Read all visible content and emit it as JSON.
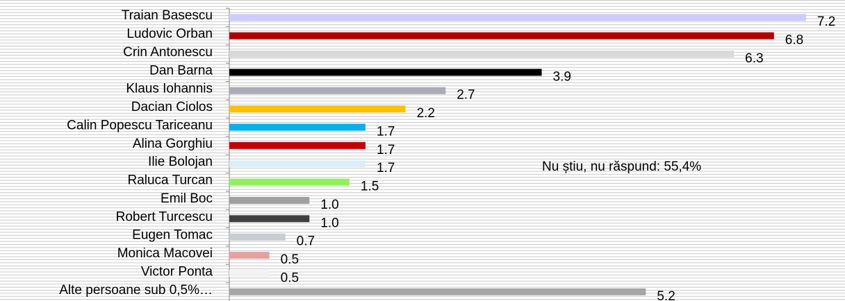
{
  "chart_data": {
    "type": "hbar",
    "categories": [
      "Traian Basescu",
      "Ludovic Orban",
      "Crin Antonescu",
      "Dan Barna",
      "Klaus Iohannis",
      "Dacian Ciolos",
      "Calin Popescu Tariceanu",
      "Alina Gorghiu",
      "Ilie Bolojan",
      "Raluca Turcan",
      "Emil Boc",
      "Robert Turcescu",
      "Eugen Tomac",
      "Monica Macovei",
      "Victor Ponta",
      "Alte persoane sub 0,5%…"
    ],
    "values": [
      7.2,
      6.8,
      6.3,
      3.9,
      2.7,
      2.2,
      1.7,
      1.7,
      1.7,
      1.5,
      1.0,
      1.0,
      0.7,
      0.5,
      0.5,
      5.2
    ],
    "value_labels": [
      "7.2",
      "6.8",
      "6.3",
      "3.9",
      "2.7",
      "2.2",
      "1.7",
      "1.7",
      "1.7",
      "1.5",
      "1.0",
      "1.0",
      "0.7",
      "0.5",
      "0.5",
      "5.2"
    ],
    "colors": [
      "#ccccff",
      "#b00000",
      "#d9d9d9",
      "#000000",
      "#a9abb5",
      "#ffc000",
      "#00b0f0",
      "#c00000",
      "#dbeef8",
      "#92f060",
      "#a0a0a0",
      "#404040",
      "#c8cdd2",
      "#e6a0a0",
      "#f2f2f2",
      "#a6a6a6"
    ],
    "xlim": [
      0,
      7.6
    ],
    "annotation": "Nu știu, nu răspund: 55,4%"
  }
}
